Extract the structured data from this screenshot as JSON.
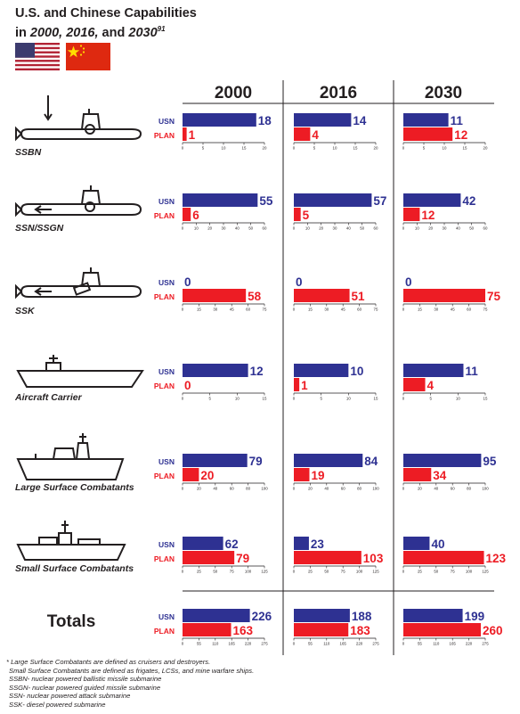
{
  "title": {
    "line1": "U.S. and Chinese Capabilities",
    "line2_prefix": "in ",
    "line2_italic": "2000, 2016,",
    "line2_and": " and ",
    "line2_year": "2030",
    "footnote_ref": "91"
  },
  "flags": {
    "usa": {
      "name": "usa-flag",
      "stripe_red": "#b22234",
      "canton_blue": "#3c3b6e"
    },
    "china": {
      "name": "china-flag",
      "field": "#de2910",
      "star": "#ffde00"
    }
  },
  "colors": {
    "usn": "#2e3192",
    "plan": "#ed1c24",
    "axis": "#231f20"
  },
  "labels": {
    "usn": "USN",
    "plan": "PLAN"
  },
  "chart_data": {
    "type": "bar",
    "orientation": "horizontal",
    "years": [
      "2000",
      "2016",
      "2030"
    ],
    "series_names": [
      "USN",
      "PLAN"
    ],
    "categories": [
      {
        "name": "SSBN",
        "icon": "ssbn-submarine-icon",
        "ticks": [
          0,
          5,
          10,
          15,
          20
        ],
        "xlim": [
          0,
          20
        ],
        "usn": [
          18,
          14,
          11
        ],
        "plan": [
          1,
          4,
          12
        ]
      },
      {
        "name": "SSN/SSGN",
        "icon": "ssn-submarine-icon",
        "ticks": [
          0,
          10,
          20,
          30,
          40,
          50,
          60
        ],
        "xlim": [
          0,
          60
        ],
        "usn": [
          55,
          57,
          42
        ],
        "plan": [
          6,
          5,
          12
        ]
      },
      {
        "name": "SSK",
        "icon": "ssk-submarine-icon",
        "ticks": [
          0,
          15,
          30,
          45,
          60,
          75
        ],
        "xlim": [
          0,
          75
        ],
        "usn": [
          0,
          0,
          0
        ],
        "plan": [
          58,
          51,
          75
        ]
      },
      {
        "name": "Aircraft Carrier",
        "icon": "aircraft-carrier-icon",
        "ticks": [
          0,
          5,
          10,
          15
        ],
        "xlim": [
          0,
          15
        ],
        "usn": [
          12,
          10,
          11
        ],
        "plan": [
          0,
          1,
          4
        ]
      },
      {
        "name": "Large Surface Combatants",
        "icon": "large-surface-combatant-icon",
        "ticks": [
          0,
          20,
          40,
          60,
          80,
          100
        ],
        "xlim": [
          0,
          100
        ],
        "usn": [
          79,
          84,
          95
        ],
        "plan": [
          20,
          19,
          34
        ]
      },
      {
        "name": "Small Surface Combatants",
        "icon": "small-surface-combatant-icon",
        "ticks": [
          0,
          25,
          50,
          75,
          100,
          125
        ],
        "xlim": [
          0,
          125
        ],
        "usn": [
          62,
          23,
          40
        ],
        "plan": [
          79,
          103,
          123
        ]
      },
      {
        "name": "Totals",
        "icon": "",
        "ticks": [
          0,
          55,
          110,
          165,
          220,
          275
        ],
        "xlim": [
          0,
          275
        ],
        "usn": [
          226,
          188,
          199
        ],
        "plan": [
          163,
          183,
          260
        ]
      }
    ]
  },
  "footnotes": [
    "* Large Surface Combatants are defined as cruisers and destroyers.",
    "Small Surface Combatants are defined as frigates, LCSs, and mine warfare ships.",
    "SSBN- nuclear powered ballistic missile submarine",
    "SSGN- nuclear powered guided missile submarine",
    "SSN- nuclear powered attack submarine",
    "SSK- diesel powered submarine"
  ]
}
